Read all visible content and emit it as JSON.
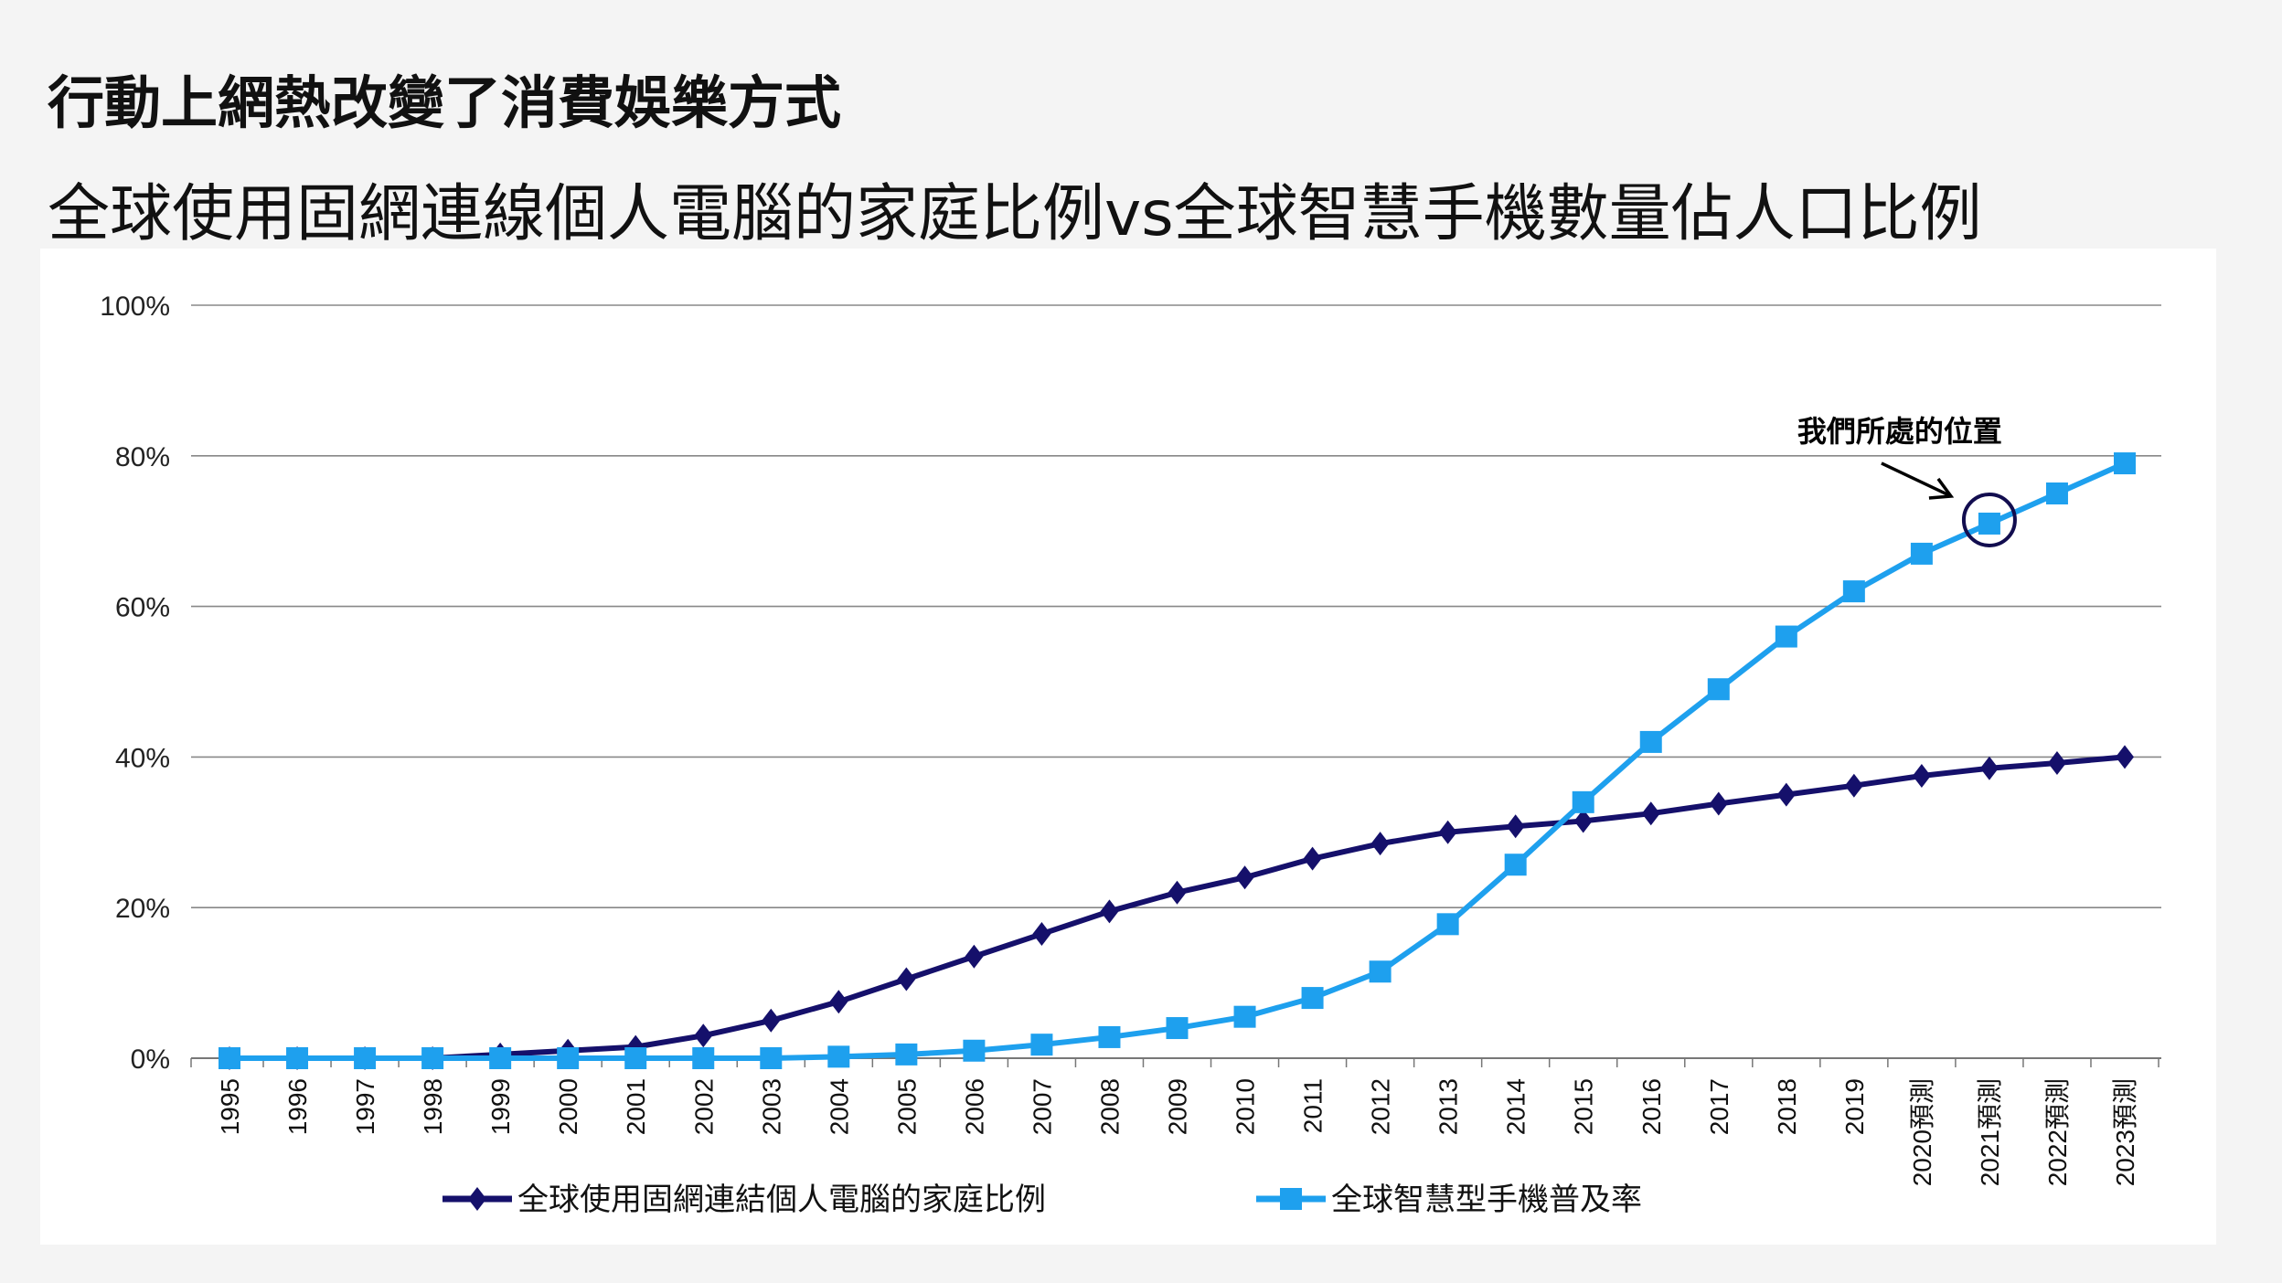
{
  "header": {
    "title": "行動上網熱改變了消費娛樂方式",
    "subtitle": "全球使用固網連線個人電腦的家庭比例vs全球智慧手機數量佔人口比例"
  },
  "chart_data": {
    "type": "line",
    "title": "",
    "xlabel": "",
    "ylabel": "",
    "ylim": [
      0,
      100
    ],
    "y_ticks": [
      "0%",
      "20%",
      "40%",
      "60%",
      "80%",
      "100%"
    ],
    "y_tick_values": [
      0,
      20,
      40,
      60,
      80,
      100
    ],
    "grid": true,
    "legend_position": "bottom",
    "x": [
      "1995",
      "1996",
      "1997",
      "1998",
      "1999",
      "2000",
      "2001",
      "2002",
      "2003",
      "2004",
      "2005",
      "2006",
      "2007",
      "2008",
      "2009",
      "2010",
      "2011",
      "2012",
      "2013",
      "2014",
      "2015",
      "2016",
      "2017",
      "2018",
      "2019",
      "2020預測",
      "2021預測",
      "2022預測",
      "2023預測"
    ],
    "series": [
      {
        "name": "全球使用固網連結個人電腦的家庭比例",
        "color": "#15106b",
        "marker": "diamond",
        "values": [
          0,
          0,
          0,
          0,
          0.5,
          1,
          1.5,
          3,
          5,
          7.5,
          10.5,
          13.5,
          16.5,
          19.5,
          22,
          24,
          26.5,
          28.5,
          30,
          30.8,
          31.5,
          32.5,
          33.8,
          35,
          36.2,
          37.5,
          38.5,
          39.2,
          40
        ]
      },
      {
        "name": "全球智慧型手機普及率",
        "color": "#1ea0ee",
        "marker": "square",
        "values": [
          0,
          0,
          0,
          0,
          0,
          0,
          0,
          0,
          0,
          0.2,
          0.5,
          1,
          1.8,
          2.8,
          4,
          5.5,
          8,
          11.5,
          17.8,
          25.7,
          34,
          42,
          49,
          56,
          62,
          67,
          71,
          75,
          79
        ]
      }
    ],
    "annotation": {
      "text": "我們所處的位置",
      "target_x": "2021預測",
      "target_series": "全球智慧型手機普及率"
    }
  }
}
